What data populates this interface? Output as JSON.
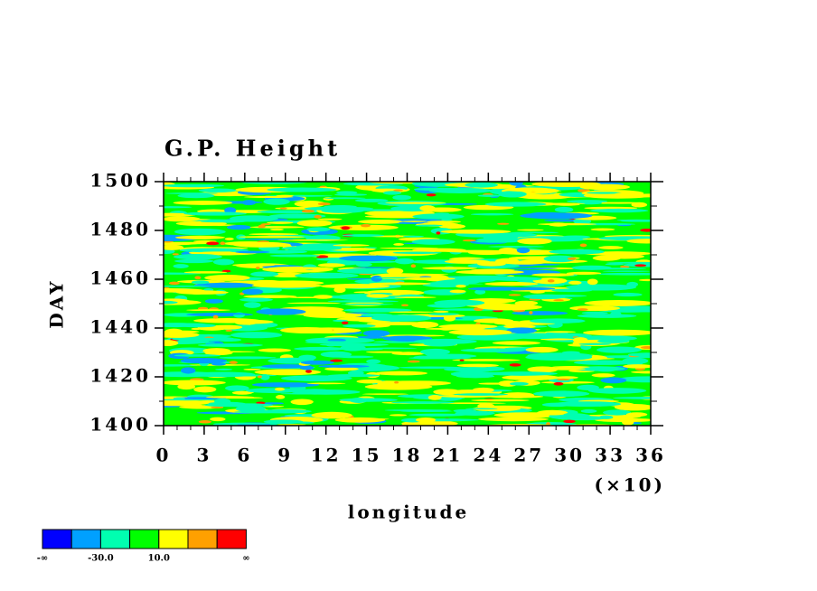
{
  "chart_data": {
    "type": "shaded-contour",
    "title": "G.P. Height",
    "xlabel": "longitude",
    "xscale_label": "(×10)",
    "ylabel": "DAY",
    "xlim": [
      0,
      36
    ],
    "xticks": [
      0,
      3,
      6,
      9,
      12,
      15,
      18,
      21,
      24,
      27,
      30,
      33,
      36
    ],
    "ylim": [
      1400,
      1500
    ],
    "yticks": [
      1400,
      1420,
      1440,
      1460,
      1480,
      1500
    ],
    "colorbar": {
      "colors": [
        "#0000ff",
        "#00a0ff",
        "#00ffb0",
        "#00ff00",
        "#ffff00",
        "#ffa000",
        "#ff0000"
      ],
      "labels": [
        "-∞",
        null,
        "-30.0",
        null,
        "10.0",
        null,
        null,
        "∞"
      ]
    }
  }
}
